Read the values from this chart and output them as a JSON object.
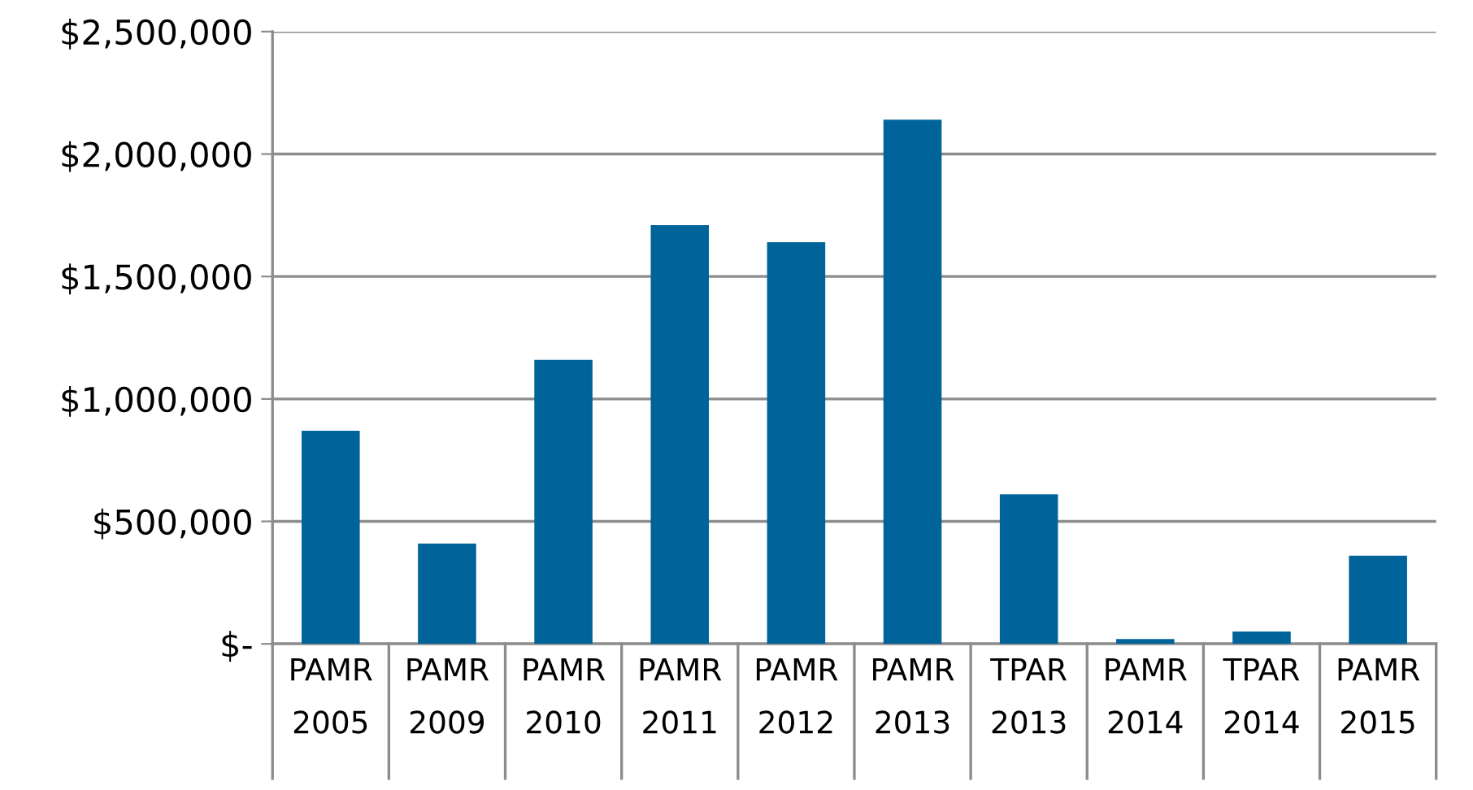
{
  "chart_data": {
    "type": "bar",
    "categories": [
      "PAMR\n2005",
      "PAMR\n2009",
      "PAMR\n2010",
      "PAMR\n2011",
      "PAMR\n2012",
      "PAMR\n2013",
      "TPAR\n2013",
      "PAMR\n2014",
      "TPAR\n2014",
      "PAMR\n2015"
    ],
    "values": [
      870000,
      410000,
      1160000,
      1710000,
      1640000,
      2140000,
      610000,
      20000,
      50000,
      360000
    ],
    "color": "#00649b",
    "ylim": [
      0,
      2500000
    ],
    "yticks": [
      {
        "value": 0,
        "label": "$-"
      },
      {
        "value": 500000,
        "label": "$500,000"
      },
      {
        "value": 1000000,
        "label": "$1,000,000"
      },
      {
        "value": 1500000,
        "label": "$1,500,000"
      },
      {
        "value": 2000000,
        "label": "$2,000,000"
      },
      {
        "value": 2500000,
        "label": "$2,500,000"
      }
    ],
    "grid": "y"
  }
}
